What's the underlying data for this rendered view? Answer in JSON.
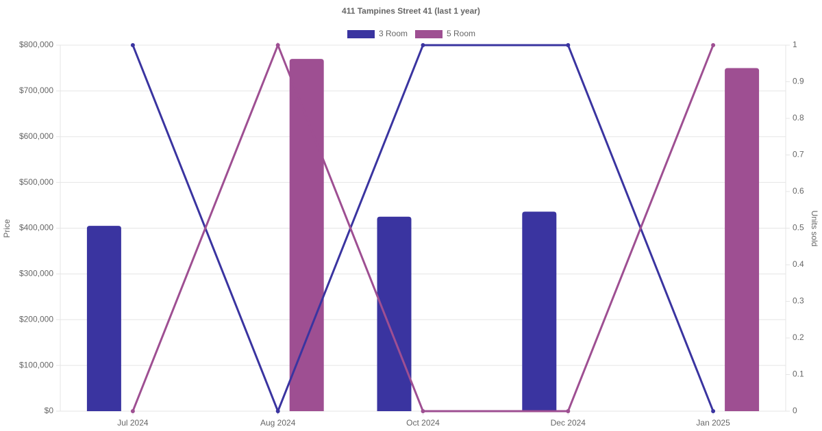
{
  "chart_data": {
    "type": "bar-line",
    "title": "411 Tampines Street 41 (last 1 year)",
    "y_label": "Price",
    "y2_label": "Units sold",
    "categories": [
      "Jul 2024",
      "Aug 2024",
      "Oct 2024",
      "Dec 2024",
      "Jan 2025"
    ],
    "series": [
      {
        "name": "3 Room",
        "color": "#3a34a0",
        "values": [
          405000,
          null,
          425000,
          436000,
          null
        ],
        "units_sold": [
          1,
          0,
          1,
          1,
          0
        ]
      },
      {
        "name": "5 Room",
        "color": "#9e4f92",
        "values": [
          null,
          770000,
          null,
          null,
          750000
        ],
        "units_sold": [
          0,
          1,
          0,
          0,
          1
        ]
      }
    ],
    "ylim": [
      0,
      800000
    ],
    "yticks": [
      {
        "value": 0,
        "label": "$0"
      },
      {
        "value": 100000,
        "label": "$100,000"
      },
      {
        "value": 200000,
        "label": "$200,000"
      },
      {
        "value": 300000,
        "label": "$300,000"
      },
      {
        "value": 400000,
        "label": "$400,000"
      },
      {
        "value": 500000,
        "label": "$500,000"
      },
      {
        "value": 600000,
        "label": "$600,000"
      },
      {
        "value": 700000,
        "label": "$700,000"
      },
      {
        "value": 800000,
        "label": "$800,000"
      }
    ],
    "y2lim": [
      0,
      1
    ],
    "y2ticks": [
      0,
      0.1,
      0.2,
      0.3,
      0.4,
      0.5,
      0.6,
      0.7,
      0.8,
      0.9,
      1
    ],
    "grid": true,
    "legend": "top"
  }
}
